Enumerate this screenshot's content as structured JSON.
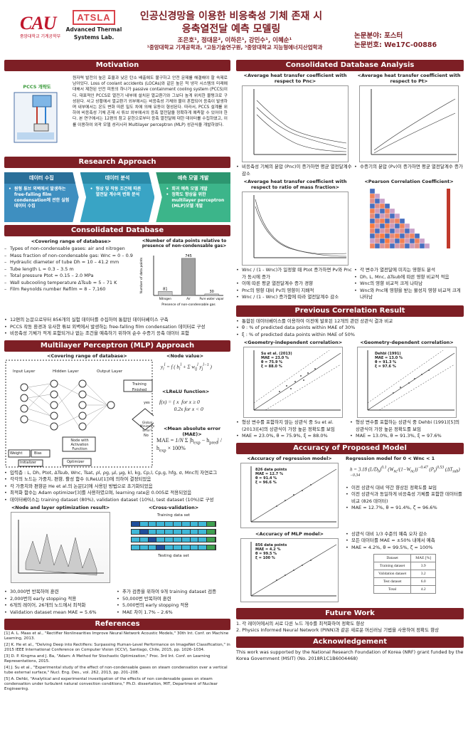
{
  "header": {
    "logo_cau": "CAU",
    "logo_cau_sub": "중앙대학교 기계공학부",
    "logo_atsla": "ATSLA",
    "logo_atsla_line1": "Advanced Thermal",
    "logo_atsla_line2": "Systems Lab.",
    "title_line1": "인공신경망을 이용한 비응축성 기체 존재 시",
    "title_line2": "응축열전달 예측 모델링",
    "authors": "조은호¹, 정대윤², 이하은¹, 강민수¹, 이혜순¹",
    "affiliations": "¹중앙대학교 기계공학과, ²고등기술연구원, ³중앙대학교 지능형에너지산업학과",
    "field": "논문분야: 포스터",
    "paper_no": "논문번호: We17C-00886"
  },
  "motivation": {
    "title": "Motivation",
    "pccs_label": "PCCS 개략도",
    "text": "원자력 발전의 높은 효율과 낮은 탄소 배출에도 불구하고 안전 문제를 해결해야 할 숙제로 남아있다. Loss of coolant accidents (LOCAs)와 같은 높은 적 냉각 시스템의 미래에 대해서 제한된 안전 피동의 하나가 passive containment cooling system (PCCS)이다. 대표적인 PCCS로 열전기 내부에 설치된 열교환기와 그보다 높게 위치한 물탱크로 구성된다. 사고 상황에서 열교환기 외부에서는 비응축성 기체와 물이 혼합되어 응축이 발생하며 내부에서는 온도 변화 따른 밀도 차에 의해 유동이 형성된다. 따라서, PCCS 설계를 위하여 비응축성 기체 존재 시 튜브 외부에서의 응축 열전달을 정확하게 예측할 수 있어야 한다. 본 연구에서는 12편의 참고 문헌으로부터 응축 열전달에 대한 데이터를 수집하였고, 이를 이용하여 외곽 모델 성리시라 Multilayer perceptron (MLP) 성관식을 개발하였다.",
    "diagram_labels": [
      "Containment wall",
      "Water tank",
      "Heat exchanger",
      "Cool water",
      "Hot water",
      "Condensation"
    ]
  },
  "research_approach": {
    "title": "Research Approach",
    "steps": [
      {
        "head": "데이터 수집",
        "items": [
          "원형 튜브 외벽에서 발생하는 free-falling film condensation에 관한 실험데이터 수집"
        ]
      },
      {
        "head": "데이터 분석",
        "items": [
          "형상 및 작동 조건에 따른 열전달 계수의 변화 분석"
        ]
      },
      {
        "head": "예측 모델 개발",
        "items": [
          "회귀 예측 모델 개발",
          "정확도 향상을 위한 multilayer perceptron (MLP)모델 개발"
        ]
      }
    ]
  },
  "consolidated_db": {
    "title": "Consolidated Database",
    "range_title": "<Covering range of database>",
    "ranges": [
      "Types of non-condensable gases: air and nitrogen",
      "Mass fraction of non-condensable gas: Wnc = 0 – 0.9",
      "Hydraulic diameter of tube Dh = 10 – 41.2 mm",
      "Tube length L = 0.3 – 3.5 m",
      "Total pressure Ptot = 0.15 – 2.0 MPa",
      "Wall subcooling temperature ΔTsub = 5 – 71 K",
      "Film Reynolds number Refilm = 8 – 7,160"
    ],
    "bar_title": "<Number of data points relative to presence of non-condensable gas>",
    "notes": [
      "12편의 논문으로부터 856개의 실험 데이터를 수집하여 통합된 데이터베이스 구축",
      "PCCS 작동 환경과 유사한 튜브 외벽에서 발생하는 free-falling film condensation 데이터로 구성",
      "비응축성 기체가 적게 포함되거나 없는 조건을 예측하기 위하여 순수 수증기 응축 데이터 포함"
    ]
  },
  "chart_data": {
    "type": "bar",
    "categories": [
      "Nitrogen",
      "Air",
      "Pure water vapor"
    ],
    "values": [
      81,
      745,
      30
    ],
    "ylabel": "Number of data points",
    "xlabel": "Presence of non-condensable gas",
    "ylim": [
      0,
      800
    ],
    "colors": [
      "#c9c9c9",
      "#a0a0a0",
      "#c9c9c9"
    ]
  },
  "mlp": {
    "title": "Multilayer Perceptron (MLP) Approach",
    "db_title": "<Covering range of database>",
    "labels": {
      "input": "Input Layer",
      "hidden": "Hidden Layer",
      "output": "Output Layer",
      "training_finished": "Training Finished",
      "yes": "yes",
      "no": "No",
      "global_min": "Global Minimum Error?",
      "node": "Node with Activation Function",
      "weight": "Weight",
      "bias": "Bias",
      "initializer": "Initializer",
      "optimizer": "Optimizer"
    },
    "node_value_title": "<Node value>",
    "lrelu_title": "<LReLU function>",
    "mae_title": "<Mean absolute error (MAE)>",
    "items": [
      "입력층 : L, Dh, Ptot, ΔTsub, Wnc, Tsat, ρl, ρg, μl, μg, kl, kg, Cp,l, Cp,g, hfg, σ, Mnc의 자연로그",
      "각각의 노드는 가중치, 편향, 활성 함수 (LReLU[1])에 의하여 결정되었음",
      "각 가중치와 편향은 He et al.의 논문[2]에 사용된 방법으로 초기화되었음",
      "최적화 함수는 Adam optimizer[3]를 사용하였으며, learning rate은 0.005로 적용되었음",
      "데이터베이스는 training dataset (80%), validation dataset (10%), test dataset (10%)로 구성"
    ],
    "node_layer_title": "<Node and layer optimization result>",
    "cross_title": "<Cross-validation>",
    "training_set": "Training data set",
    "testing_set": "Testing data set",
    "left_bullets": [
      "30,000번 반복하여 훈련",
      "2,000번의 early stopping 적용",
      "6개의 레이어, 26개의 노드에서 최적화",
      "Validation dataset mean MAE = 5.6%"
    ],
    "right_bullets": [
      "추가 검증을 위하여 9개 training dataset 검증",
      "50,000번 반복하여 훈련",
      "5,000번의 early stopping 적용",
      "MAE 차이 1.7% – 2.6%"
    ]
  },
  "references": {
    "title": "References",
    "items": [
      "[1] A. L. Maas et al., \"Rectifier Nonlinearities Improve Neural Network Acoustic Models,\" 30th Int. Conf. on Machine Learning, 2013.",
      "[2] K. He et al., \"Delving Deep into Rectifiers: Surpassing Human-Level Performance on ImageNet Classification,\" in 2015 IEEE International Conference on Computer Vision (ICCV), Santiago, Chile, 2015, pp. 1026–1034.",
      "[3] D. P. Kingma and J. Ba, \"Adam: A Method for Stochastic Optimization,\" Proc. 3rd Int. Conf. on Learning Representations, 2015.",
      "[4] J. Su et al., \"Experimental study of the effect of non-condensable gases on steam condensation over a vertical tube external surface,\" Nucl. Eng. Des., vol. 262, 2013, pp. 201–208.",
      "[5] A. Dehbi, \"Analytical and experimental investigation of the effects of non condensable gases on steam condensation under turbulent natural convection conditions,\" Ph.D. dissertation, MIT, Department of Nuclear Engineering."
    ]
  },
  "analysis": {
    "title": "Consolidated Database Analysis",
    "p1_title": "<Average heat transfer coefficient with respect to Pnc>",
    "p2_title": "<Average heat transfer coefficient with respect to Pt>",
    "p3_title": "<Average heat transfer coefficient with respect to ratio of mass fraction>",
    "p4_title": "<Pearson Correlation Coefficient>",
    "b1": "비응축성 기체의 분압 (Pnc)이 증가하면 평균 열전달계수 감소",
    "b2": "수증기의 분압 (Pv)이 증가하면 평균 열전달계수 증가",
    "b3": [
      "Wnc / (1 - Wnc)가 일정할 때 Ptot 증가하면 Pv와 Pnc가 동시에 증가",
      "이에 따른 평균 열전달계수 증가 경향",
      "Pnc의 영향 대비 Pv의 영향이 지배적",
      "Wnc / (1 - Wnc) 증가함에 따라 열전달계수 감소"
    ],
    "b4": [
      "각 변수가 열전달에 미치는 영향도 분석",
      "Dh, L, Mnc, ΔTsub에 따른 영향 비교적 적음",
      "Wnc의 영향 비교적 크게 나타남",
      "Wnc와 Pnc에 영향을 받는 물성치 영향 비교적 크게 나타남"
    ]
  },
  "previous": {
    "title": "Previous Correlation Result",
    "items": [
      "통합된 데이터베이스를 이용하여 이전에 발표된 12개의 관련 상관식 결과 비교",
      "θ : % of predicted data points within MAE of 30%",
      "ξ : % of predicted data points within MAE of 50%"
    ],
    "g1_title": "<Geometry-independent correlation>",
    "g2_title": "<Geometry-dependent correlation>",
    "g1_label": [
      "Su et al. (2013)",
      "MAE = 23.0 %",
      "θ = 75.9 %",
      "ξ = 88.0 %"
    ],
    "g2_label": [
      "Dehbi (1991)",
      "MAE = 13.0 %",
      "θ = 91.3 %",
      "ξ = 97.6 %"
    ],
    "g1_b": [
      "형상 변수를 포함하지 않는 상관식 중 Su et al. (2013)[4]의 상관식이 가장 높은 정확도를 보임",
      "MAE = 23.0%, θ = 75.9%, ξ = 88.0%"
    ],
    "g2_b": [
      "형상 변수를 포함하는 상관식 중 Dehbi (1991)[5]의 상관식이 가장 높은 정확도를 보임",
      "MAE = 13.0%, θ = 91.3%, ξ = 97.6%"
    ]
  },
  "accuracy": {
    "title": "Accuracy of Proposed Model",
    "reg_title": "<Accuracy of regression model>",
    "reg_label": [
      "826 data points",
      "MAE = 12.7 %",
      "θ = 91.4 %",
      "ξ = 96.6 %"
    ],
    "reg_model_title": "Regression model for 0 < Wnc < 1",
    "reg_b": [
      "이전 상관식 대비 약간 향상된 정확도를 보임",
      "이전 상관식과 동일하게 비응축성 기체를 포함한 데이터를 비교 (826 데이터)",
      "MAE = 12.7%, θ = 91.4%, ζ = 96.6%"
    ],
    "mlp_title": "<Accuracy of MLP model>",
    "mlp_label": [
      "856 data points",
      "MAE = 4.2 %",
      "θ = 99.5 %",
      "ξ = 100 %"
    ],
    "mlp_b": [
      "상관식 대비 1/3 수준의 예측 오차 감소",
      "모든 데이터를 MAE = ±50% 내에서 예측",
      "MAE = 4.2%, θ = 99.5%, ζ = 100%"
    ],
    "table_head": [
      "Dataset",
      "MAE [%]"
    ],
    "table_rows": [
      [
        "Training dataset",
        "3.9"
      ],
      [
        "Validation dataset",
        "3.2"
      ],
      [
        "Test dataset",
        "6.0"
      ],
      [
        "Total",
        "4.2"
      ]
    ],
    "xlabel": "hexp [W/m²K]",
    "ylabel": "hpred [W/m²K]",
    "plus30": "+30%",
    "minus30": "-30%"
  },
  "future": {
    "title": "Future Work",
    "items": [
      "1. 각 레이어에서의 서로 다른 노드 개수를 최적화하여 정확도 향상",
      "2. Physics Informed Neural Network (PINN)과 같은 새로운 머신러닝 기법을 사용하여 정확도 향상"
    ]
  },
  "ack": {
    "title": "Acknowledgement",
    "text": "This work was supported by the National Research Foundation of Korea (NRF) grant funded by the Korea Government (MSIT) (No. 2018R1C1B6004468)"
  }
}
